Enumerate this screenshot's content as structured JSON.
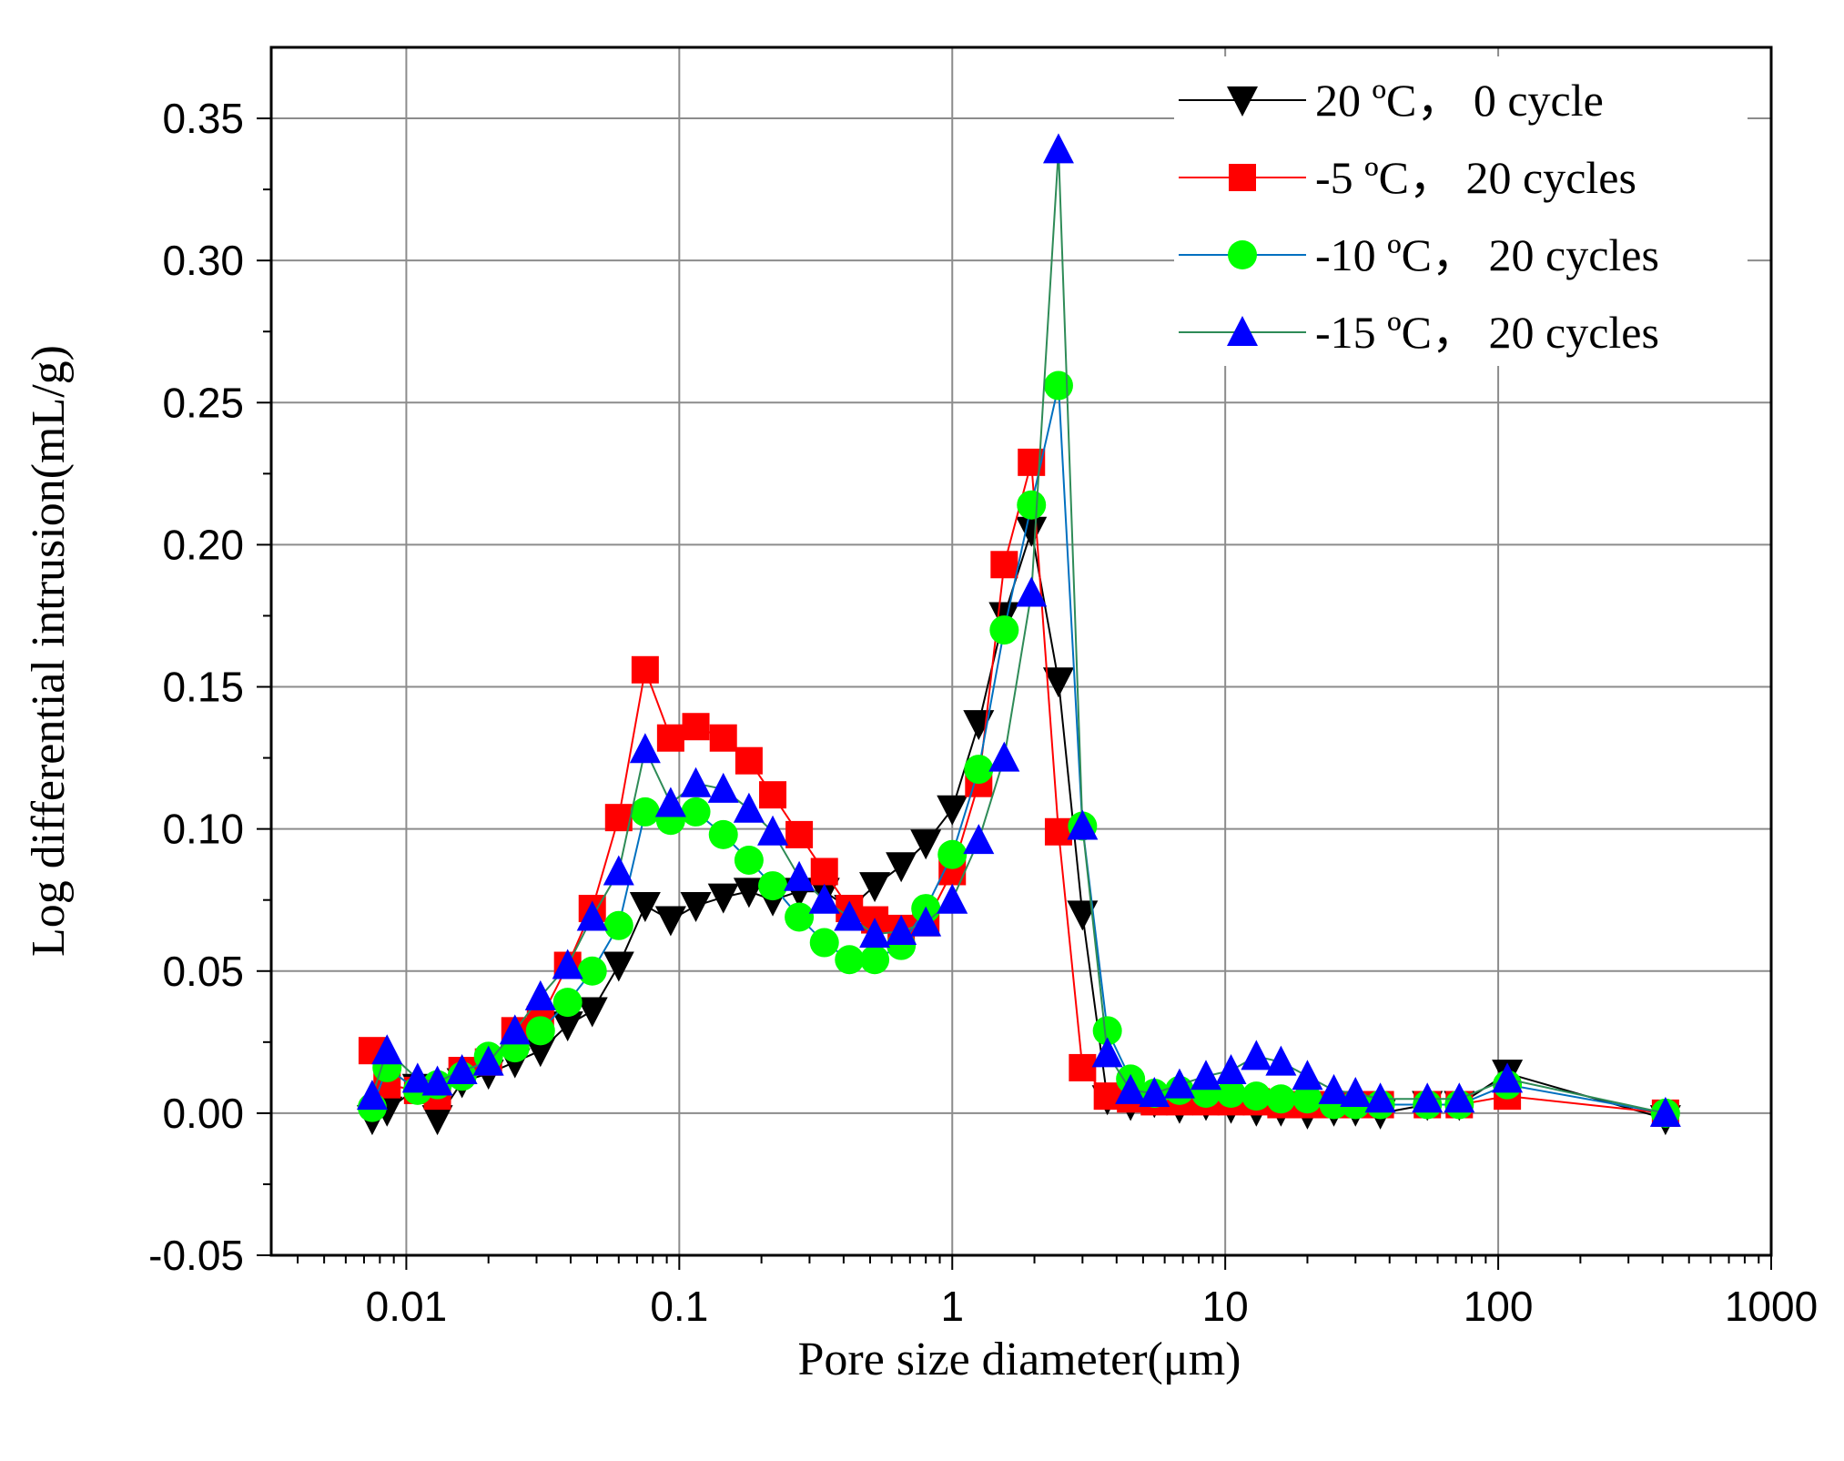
{
  "chart_data": {
    "type": "line",
    "title": "",
    "xlabel": "Pore size diameter(μm)",
    "ylabel": "Log differential intrusion(mL/g)",
    "xscale": "log",
    "xlim": [
      0.0032,
      1000
    ],
    "ylim": [
      -0.05,
      0.375
    ],
    "x_ticks": [
      0.01,
      0.1,
      1,
      10,
      100,
      1000
    ],
    "x_tick_labels": [
      "0.01",
      "0.1",
      "1",
      "10",
      "100",
      "1000"
    ],
    "y_ticks": [
      -0.05,
      0.0,
      0.05,
      0.1,
      0.15,
      0.2,
      0.25,
      0.3,
      0.35
    ],
    "y_tick_labels": [
      "-0.05",
      "0.00",
      "0.05",
      "0.10",
      "0.15",
      "0.20",
      "0.25",
      "0.30",
      "0.35"
    ],
    "grid": true,
    "legend_position": "top-right",
    "series": [
      {
        "name": "20 ºC， 0 cycle",
        "color": "#000000",
        "marker": "triangle-down",
        "x": [
          0.0075,
          0.0085,
          0.011,
          0.013,
          0.016,
          0.02,
          0.025,
          0.031,
          0.039,
          0.048,
          0.06,
          0.075,
          0.093,
          0.115,
          0.145,
          0.18,
          0.22,
          0.275,
          0.34,
          0.42,
          0.52,
          0.65,
          0.8,
          1.0,
          1.25,
          1.55,
          1.95,
          2.45,
          3.0,
          3.7,
          4.5,
          5.5,
          6.8,
          8.5,
          10.5,
          13.0,
          16.0,
          20.0,
          25.0,
          30.0,
          37.0,
          55.0,
          72.0,
          108.0,
          410.0
        ],
        "y": [
          -0.002,
          0.001,
          0.009,
          -0.002,
          0.011,
          0.014,
          0.018,
          0.022,
          0.031,
          0.036,
          0.052,
          0.073,
          0.068,
          0.073,
          0.076,
          0.078,
          0.075,
          0.078,
          0.078,
          0.072,
          0.08,
          0.087,
          0.095,
          0.107,
          0.137,
          0.175,
          0.205,
          0.152,
          0.07,
          0.005,
          0.003,
          0.004,
          0.002,
          0.003,
          0.002,
          0.001,
          0.001,
          0.0,
          0.001,
          0.001,
          0.0,
          0.003,
          0.003,
          0.014,
          -0.002
        ]
      },
      {
        "name": "-5 ºC， 20 cycles",
        "color": "#ff0000",
        "marker": "square",
        "x": [
          0.0075,
          0.0085,
          0.011,
          0.013,
          0.016,
          0.02,
          0.025,
          0.031,
          0.039,
          0.048,
          0.06,
          0.075,
          0.093,
          0.115,
          0.145,
          0.18,
          0.22,
          0.275,
          0.34,
          0.42,
          0.52,
          0.65,
          0.8,
          1.0,
          1.25,
          1.55,
          1.95,
          2.45,
          3.0,
          3.7,
          4.5,
          5.5,
          6.8,
          8.5,
          10.5,
          13.0,
          16.0,
          20.0,
          25.0,
          30.0,
          37.0,
          55.0,
          72.0,
          108.0,
          410.0
        ],
        "y": [
          0.022,
          0.01,
          0.008,
          0.006,
          0.015,
          0.018,
          0.029,
          0.033,
          0.052,
          0.072,
          0.104,
          0.156,
          0.132,
          0.136,
          0.132,
          0.124,
          0.112,
          0.098,
          0.085,
          0.072,
          0.068,
          0.065,
          0.067,
          0.085,
          0.116,
          0.193,
          0.229,
          0.099,
          0.016,
          0.006,
          0.005,
          0.004,
          0.004,
          0.004,
          0.004,
          0.004,
          0.003,
          0.003,
          0.003,
          0.003,
          0.003,
          0.003,
          0.003,
          0.006,
          0.0
        ]
      },
      {
        "name": "-10 ºC， 20 cycles",
        "color": "#00ff00",
        "line_color": "#0070c0",
        "marker": "circle",
        "x": [
          0.0075,
          0.0085,
          0.011,
          0.013,
          0.016,
          0.02,
          0.025,
          0.031,
          0.039,
          0.048,
          0.06,
          0.075,
          0.093,
          0.115,
          0.145,
          0.18,
          0.22,
          0.275,
          0.34,
          0.42,
          0.52,
          0.65,
          0.8,
          1.0,
          1.25,
          1.55,
          1.95,
          2.45,
          3.0,
          3.7,
          4.5,
          5.5,
          6.8,
          8.5,
          10.5,
          13.0,
          16.0,
          20.0,
          25.0,
          30.0,
          37.0,
          55.0,
          72.0,
          108.0,
          410.0
        ],
        "y": [
          0.002,
          0.016,
          0.008,
          0.01,
          0.013,
          0.02,
          0.023,
          0.029,
          0.039,
          0.05,
          0.066,
          0.106,
          0.103,
          0.106,
          0.098,
          0.089,
          0.08,
          0.069,
          0.06,
          0.054,
          0.054,
          0.059,
          0.072,
          0.091,
          0.121,
          0.17,
          0.214,
          0.256,
          0.101,
          0.029,
          0.012,
          0.007,
          0.008,
          0.007,
          0.007,
          0.006,
          0.005,
          0.005,
          0.003,
          0.003,
          0.003,
          0.003,
          0.003,
          0.01,
          0.0
        ]
      },
      {
        "name": "-15 ºC， 20 cycles",
        "color": "#0000ff",
        "line_color": "#2e8b57",
        "marker": "triangle-up",
        "x": [
          0.0075,
          0.0085,
          0.011,
          0.013,
          0.016,
          0.02,
          0.025,
          0.031,
          0.039,
          0.048,
          0.06,
          0.075,
          0.093,
          0.115,
          0.145,
          0.18,
          0.22,
          0.275,
          0.34,
          0.42,
          0.52,
          0.65,
          0.8,
          1.0,
          1.25,
          1.55,
          1.95,
          2.45,
          3.0,
          3.7,
          4.5,
          5.5,
          6.8,
          8.5,
          10.5,
          13.0,
          16.0,
          20.0,
          25.0,
          30.0,
          37.0,
          55.0,
          72.0,
          108.0,
          410.0
        ],
        "y": [
          0.006,
          0.022,
          0.012,
          0.011,
          0.015,
          0.018,
          0.029,
          0.041,
          0.052,
          0.069,
          0.085,
          0.128,
          0.109,
          0.116,
          0.114,
          0.107,
          0.099,
          0.083,
          0.075,
          0.069,
          0.063,
          0.064,
          0.067,
          0.075,
          0.096,
          0.125,
          0.183,
          0.339,
          0.101,
          0.021,
          0.008,
          0.007,
          0.01,
          0.013,
          0.015,
          0.02,
          0.018,
          0.013,
          0.008,
          0.007,
          0.005,
          0.005,
          0.005,
          0.012,
          0.0
        ]
      }
    ]
  }
}
